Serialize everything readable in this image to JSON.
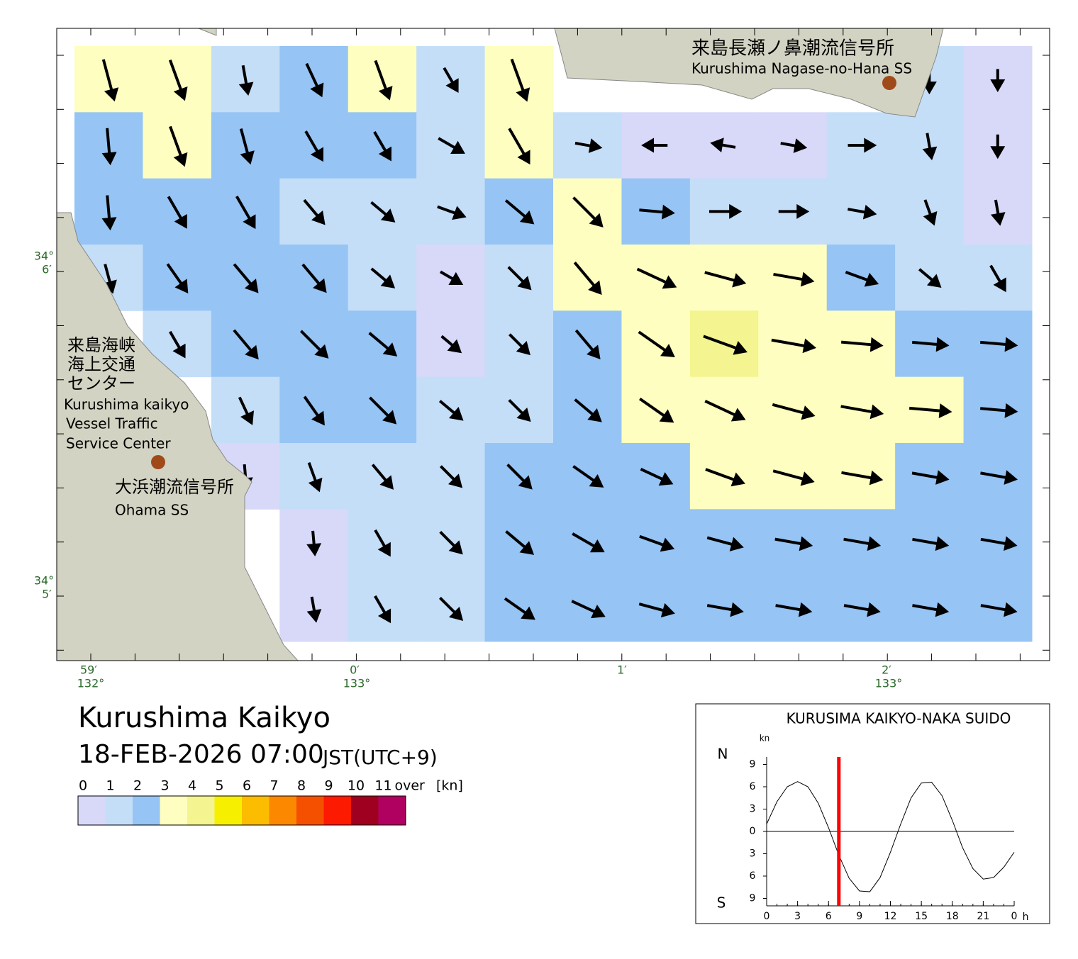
{
  "map": {
    "stations": [
      {
        "name_ja": "来島長瀬ノ鼻潮流信号所",
        "name_en": "Kurushima Nagase-no-Hana SS"
      },
      {
        "name_ja": "大浜潮流信号所",
        "name_en": "Ohama SS"
      }
    ],
    "center_ja": [
      "来島海峡",
      "海上交通",
      "センター"
    ],
    "center_en": [
      "Kurushima kaikyo",
      "Vessel Traffic",
      "Service Center"
    ],
    "lat_labels": [
      {
        "deg": "34°",
        "min": "6′"
      },
      {
        "deg": "34°",
        "min": "5′"
      }
    ],
    "lon_labels": [
      {
        "min": "59′",
        "deg": "132°"
      },
      {
        "min": "0′",
        "deg": "133°"
      },
      {
        "min": "1′"
      },
      {
        "min": "2′",
        "deg": "133°"
      }
    ],
    "speed": [
      [
        3.5,
        3.5,
        1.5,
        2.5,
        3.3,
        1.2,
        3.8,
        null,
        null,
        null,
        null,
        null,
        1.0,
        0.3
      ],
      [
        2.5,
        3.4,
        2.5,
        2.2,
        2.0,
        1.5,
        3.2,
        1.0,
        0.8,
        0.7,
        0.9,
        1.2,
        1.0,
        0.5
      ],
      [
        2.2,
        2.5,
        2.6,
        1.8,
        1.6,
        1.5,
        2.5,
        3.3,
        2.3,
        1.8,
        1.5,
        1.3,
        1.0,
        0.8
      ],
      [
        1.5,
        2.3,
        2.6,
        2.5,
        1.5,
        0.8,
        1.8,
        3.3,
        3.5,
        3.4,
        3.2,
        2.2,
        1.2,
        1.5
      ],
      [
        null,
        1.5,
        2.7,
        2.8,
        2.4,
        0.8,
        1.3,
        2.6,
        3.6,
        4.0,
        3.8,
        3.3,
        2.5,
        2.6
      ],
      [
        null,
        null,
        1.5,
        2.2,
        2.6,
        1.5,
        1.5,
        2.2,
        3.2,
        3.7,
        3.6,
        3.5,
        3.4,
        2.6
      ],
      [
        null,
        null,
        0.8,
        1.6,
        1.8,
        1.5,
        2.2,
        2.5,
        2.3,
        3.3,
        3.4,
        3.3,
        2.6,
        2.6
      ],
      [
        null,
        null,
        null,
        0.7,
        1.5,
        1.7,
        2.4,
        2.5,
        2.5,
        2.6,
        2.7,
        2.6,
        2.5,
        2.5
      ],
      [
        null,
        null,
        null,
        0.8,
        1.6,
        1.8,
        2.5,
        2.5,
        2.5,
        2.5,
        2.5,
        2.5,
        2.5,
        2.5
      ]
    ],
    "direction": [
      [
        165,
        160,
        170,
        155,
        160,
        150,
        160,
        null,
        null,
        null,
        null,
        null,
        180,
        180
      ],
      [
        175,
        160,
        165,
        150,
        150,
        120,
        150,
        100,
        270,
        280,
        100,
        90,
        170,
        180
      ],
      [
        175,
        150,
        150,
        140,
        130,
        110,
        130,
        135,
        95,
        90,
        90,
        100,
        160,
        170
      ],
      [
        165,
        145,
        140,
        140,
        130,
        120,
        135,
        140,
        115,
        105,
        100,
        110,
        130,
        150
      ],
      [
        null,
        150,
        140,
        135,
        130,
        130,
        135,
        140,
        125,
        110,
        100,
        95,
        95,
        95
      ],
      [
        null,
        null,
        155,
        145,
        135,
        130,
        135,
        130,
        125,
        115,
        105,
        100,
        95,
        95
      ],
      [
        null,
        null,
        175,
        160,
        140,
        135,
        135,
        125,
        115,
        110,
        105,
        100,
        100,
        100
      ],
      [
        null,
        null,
        null,
        175,
        150,
        135,
        130,
        120,
        110,
        105,
        100,
        100,
        100,
        100
      ],
      [
        null,
        null,
        null,
        170,
        150,
        135,
        125,
        115,
        105,
        100,
        100,
        100,
        100,
        100
      ]
    ]
  },
  "header": {
    "title": "Kurushima Kaikyo",
    "datetime": "18-FEB-2026 07:00",
    "timezone": "JST(UTC+9)"
  },
  "legend": {
    "bounds": [
      0,
      1,
      2,
      3,
      4,
      5,
      6,
      7,
      8,
      9,
      10,
      11
    ],
    "over": "over",
    "unit": "[kn]",
    "colors": [
      "#d8d8f8",
      "#c4def8",
      "#96c4f4",
      "#fefec0",
      "#f4f490",
      "#f6f000",
      "#fcbc00",
      "#fc8800",
      "#f45000",
      "#fc1a00",
      "#a00020",
      "#b00060"
    ]
  },
  "chart_data": {
    "type": "line",
    "title": "KURUSIMA KAIKYO-NAKA SUIDO",
    "y_unit": "kn",
    "north_label": "N",
    "south_label": "S",
    "x_unit": "h",
    "x": [
      0,
      1,
      2,
      3,
      4,
      5,
      6,
      7,
      8,
      9,
      10,
      11,
      12,
      13,
      14,
      15,
      16,
      17,
      18,
      19,
      20,
      21,
      22,
      23,
      24
    ],
    "values": [
      1.0,
      4.0,
      6.0,
      6.7,
      6.0,
      3.8,
      0.5,
      -3.2,
      -6.3,
      -8.0,
      -8.1,
      -6.2,
      -2.8,
      1.0,
      4.5,
      6.5,
      6.6,
      4.8,
      1.5,
      -2.2,
      -5.0,
      -6.4,
      -6.2,
      -4.8,
      -2.8
    ],
    "color": "#000000",
    "xlim": [
      0,
      24
    ],
    "ylim": [
      -10,
      10
    ],
    "xticks": [
      0,
      3,
      6,
      9,
      12,
      15,
      18,
      21,
      {
        "value": 24,
        "label": "0"
      }
    ],
    "yticks": [
      {
        "value": -9,
        "label": "9"
      },
      {
        "value": -6,
        "label": "6"
      },
      {
        "value": -3,
        "label": "3"
      },
      0,
      3,
      6,
      9
    ],
    "marker_x": 7,
    "marker_color": "#ff0000"
  }
}
